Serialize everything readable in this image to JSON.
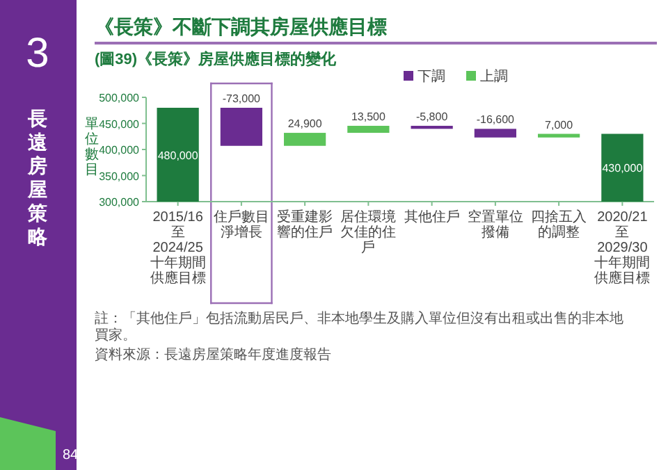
{
  "chart_data": {
    "type": "bar",
    "title": "《長策》不斷下調其房屋供應目標",
    "subtitle": "(圖39)《長策》房屋供應目標的變化",
    "ylabel": "單位數目",
    "categories": [
      "2015/16至2024/25十年期間供應目標",
      "住戶數目淨增長",
      "受重建影響的住戶",
      "居住環境欠佳的住戶",
      "其他住戶",
      "空置單位撥備",
      "四捨五入的調整",
      "2020/21至2029/30十年期間供應目標"
    ],
    "series": [
      {
        "color": "#1e7b3e",
        "base": [
          0,
          null,
          null,
          null,
          null,
          null,
          null,
          0
        ],
        "values": [
          480000,
          null,
          null,
          null,
          null,
          null,
          null,
          430000
        ],
        "value_labels": [
          "480,000",
          null,
          null,
          null,
          null,
          null,
          null,
          "430,000"
        ]
      },
      {
        "name": "下調",
        "color": "#6a2c91",
        "base": [
          null,
          480000,
          null,
          null,
          445400,
          439600,
          null,
          null
        ],
        "values": [
          null,
          -73000,
          null,
          null,
          -5800,
          -16600,
          null,
          null
        ],
        "value_labels": [
          null,
          "-73,000",
          null,
          null,
          "-5,800",
          "-16,600",
          null,
          null
        ]
      },
      {
        "name": "上調",
        "color": "#5cc45a",
        "base": [
          null,
          null,
          407000,
          431900,
          null,
          null,
          423000,
          null
        ],
        "values": [
          null,
          null,
          24900,
          13500,
          null,
          null,
          7000,
          null
        ],
        "value_labels": [
          null,
          null,
          "24,900",
          "13,500",
          null,
          null,
          "7,000",
          null
        ]
      }
    ],
    "ylim": [
      300000,
      500000
    ],
    "yticks": [
      {
        "value": 300000,
        "label": "300,000"
      },
      {
        "value": 350000,
        "label": "350,000"
      },
      {
        "value": 400000,
        "label": "400,000"
      },
      {
        "value": 450000,
        "label": "450,000"
      },
      {
        "value": 500000,
        "label": "500,000"
      }
    ],
    "grid": false,
    "legend": "top right",
    "annotations": [
      "3",
      "長遠房屋策略",
      "註：「其他住戶」包括流動居民戶、非本地學生及購入單位但沒有出租或出售的非本地買家。",
      "資料來源：長遠房屋策略年度進度報告",
      "84"
    ]
  }
}
